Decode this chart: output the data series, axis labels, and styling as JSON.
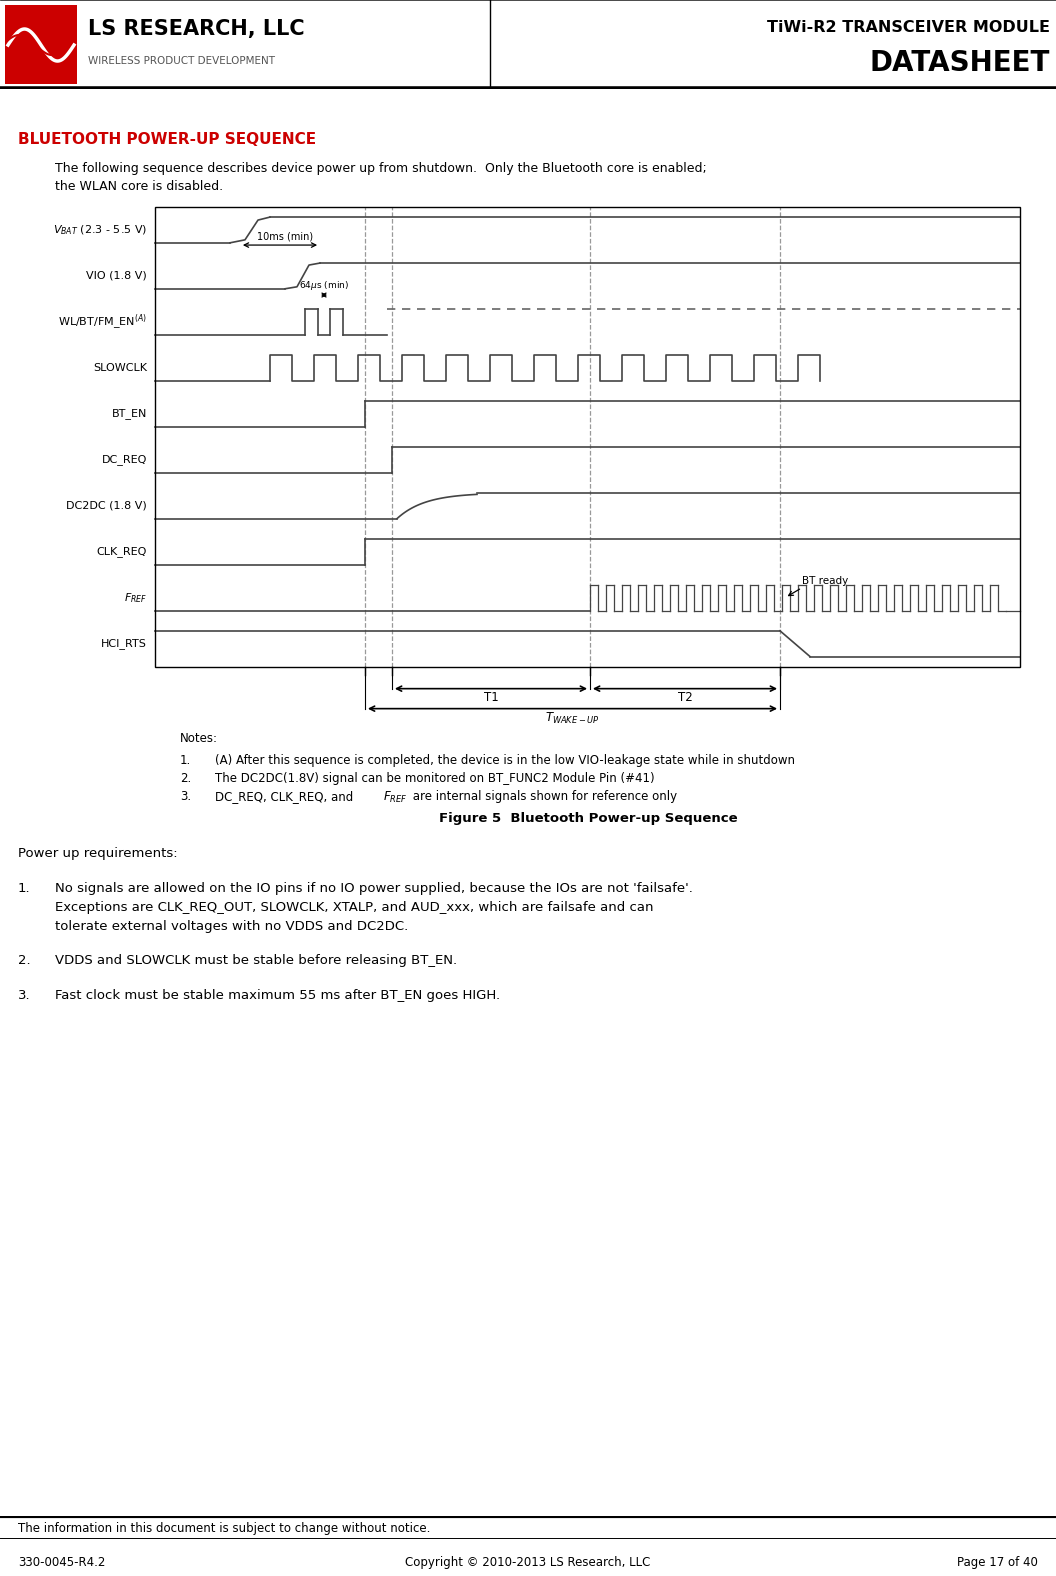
{
  "page_title_line1": "TiWi-R2 TRANSCEIVER MODULE",
  "page_title_line2": "DATASHEET",
  "logo_company": "LS RESEARCH, LLC",
  "logo_sub": "WIRELESS PRODUCT DEVELOPMENT",
  "section_title": "BLUETOOTH POWER-UP SEQUENCE",
  "intro_text1": "The following sequence describes device power up from shutdown.  Only the Bluetooth core is enabled;",
  "intro_text2": "the WLAN core is disabled.",
  "figure_caption": "Figure 5  Bluetooth Power-up Sequence",
  "notes_title": "Notes:",
  "note1": "    (A) After this sequence is completed, the device is in the low VIO-leakage state while in shutdown",
  "note2": "    The DC2DC(1.8V) signal can be monitored on BT_FUNC2 Module Pin (#41)",
  "note3": "    DC_REQ, CLK_REQ, and F",
  "note3b": "REF",
  "note3c": " are internal signals shown for reference only",
  "power_up_title": "Power up requirements:",
  "pu1_line1": "No signals are allowed on the IO pins if no IO power supplied, because the IOs are not 'failsafe'.",
  "pu1_line2": "Exceptions are CLK_REQ_OUT, SLOWCLK, XTALP, and AUD_xxx, which are failsafe and can",
  "pu1_line3": "tolerate external voltages with no VDDS and DC2DC.",
  "pu2": "VDDS and SLOWCLK must be stable before releasing BT_EN.",
  "pu3": "Fast clock must be stable maximum 55 ms after BT_EN goes HIGH.",
  "footer_left": "330-0045-R4.2",
  "footer_center": "Copyright © 2010-2013 LS Research, LLC",
  "footer_right": "Page 17 of 40",
  "footer_disclaimer": "The information in this document is subject to change without notice.",
  "bg_color": "#ffffff",
  "signal_color": "#444444",
  "red_color": "#cc0000",
  "gray_color": "#888888"
}
